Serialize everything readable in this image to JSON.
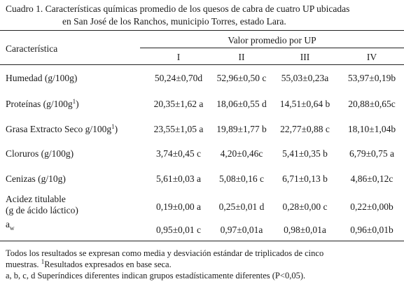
{
  "caption": {
    "line1": "Cuadro 1. Características químicas promedio de los quesos de cabra de cuatro UP ubicadas",
    "line2": "en San José de los Ranchos, municipio Torres, estado Lara."
  },
  "header": {
    "row_label": "Característica",
    "group_label": "Valor promedio por UP",
    "columns": [
      "I",
      "II",
      "III",
      "IV"
    ]
  },
  "rows": [
    {
      "label": "Humedad (g/100g)",
      "values": [
        "50,24±0,70d",
        "52,96±0,50 c",
        "55,03±0,23a",
        "53,97±0,19b"
      ]
    },
    {
      "label": "Proteínas (g/100g",
      "sup": "1",
      "label_end": ")",
      "values": [
        "20,35±1,62 a",
        "18,06±0,55 d",
        "14,51±0,64 b",
        "20,88±0,65c"
      ]
    },
    {
      "label": "Grasa Extracto Seco g/100g",
      "sup": "1",
      "label_end": ")",
      "values": [
        "23,55±1,05 a",
        "19,89±1,77 b",
        "22,77±0,88 c",
        "18,10±1,04b"
      ]
    },
    {
      "label": "Cloruros (g/100g)",
      "values": [
        "3,74±0,45 c",
        "4,20±0,46c",
        "5,41±0,35 b",
        "6,79±0,75 a"
      ]
    },
    {
      "label": "Cenizas (g/10g)",
      "values": [
        "5,61±0,03 a",
        "5,08±0,16 c",
        "6,71±0,13 b",
        "4,86±0,12c"
      ]
    },
    {
      "label": "Acidez titulable",
      "label_line2": "(g de ácido láctico)",
      "values": [
        "0,19±0,00 a",
        "0,25±0,01 d",
        "0,28±0,00 c",
        "0,22±0,00b"
      ]
    },
    {
      "label": "a",
      "sub": "w",
      "values": [
        "0,95±0,01 c",
        "0,97±0,01a",
        "0,98±0,01a",
        "0,96±0,01b"
      ]
    }
  ],
  "footnote": {
    "line1": "Todos los resultados se expresan como media y desviación estándar de triplicados de cinco",
    "line2a": "muestras. ",
    "line2_sup": "1",
    "line2b": "Resultados expresados en base seca.",
    "line3": "a, b, c, d Superíndices diferentes indican grupos estadísticamente diferentes (P<0,05)."
  }
}
